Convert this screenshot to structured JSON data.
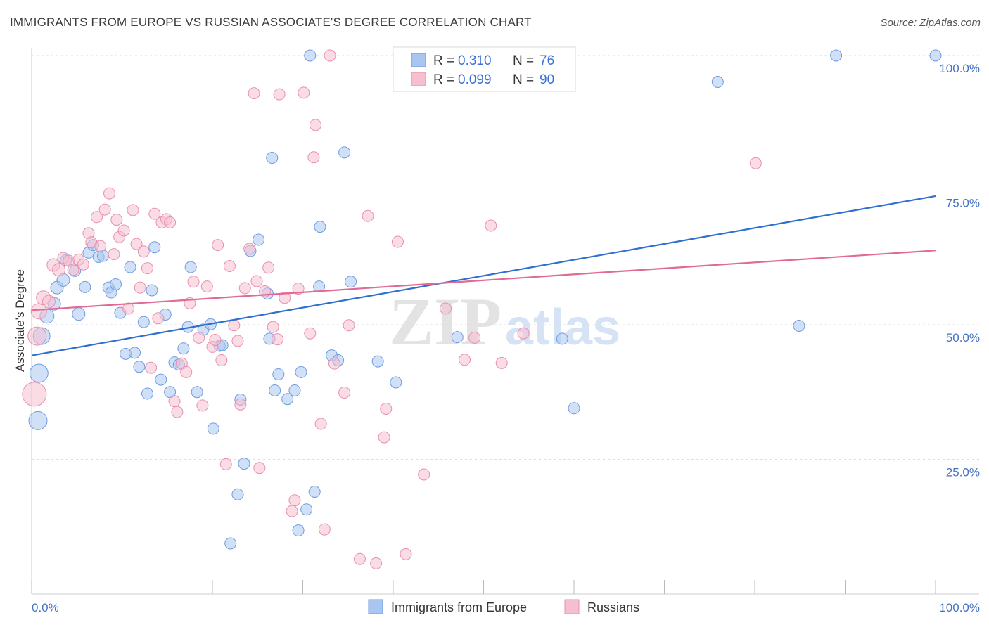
{
  "header": {
    "title": "IMMIGRANTS FROM EUROPE VS RUSSIAN ASSOCIATE'S DEGREE CORRELATION CHART",
    "source": "Source: ZipAtlas.com"
  },
  "watermark": {
    "zip": "ZIP",
    "atlas": "atlas"
  },
  "colors": {
    "blue_fill": "#a9c6f0",
    "blue_stroke": "#6f9be0",
    "blue_line": "#2f6fd0",
    "pink_fill": "#f6bfd0",
    "pink_stroke": "#ea8fae",
    "pink_line": "#e06a95",
    "tick": "#4472c4",
    "grid": "#dddddd"
  },
  "legend_box": {
    "rows": [
      {
        "r_label": "R =",
        "r_value": "0.310",
        "n_label": "N =",
        "n_value": "76"
      },
      {
        "r_label": "R =",
        "r_value": "0.099",
        "n_label": "N =",
        "n_value": "90"
      }
    ]
  },
  "chart_data": {
    "type": "scatter",
    "title": "IMMIGRANTS FROM EUROPE VS RUSSIAN ASSOCIATE'S DEGREE CORRELATION CHART",
    "xlabel": "",
    "ylabel": "Associate's Degree",
    "xlim": [
      0,
      100
    ],
    "ylim": [
      0,
      100
    ],
    "x_tick_labels": [
      "0.0%",
      "100.0%"
    ],
    "y_tick_labels": [
      "100.0%",
      "75.0%",
      "50.0%",
      "25.0%"
    ],
    "y_ticks": [
      100,
      75,
      50,
      25
    ],
    "grid": true,
    "legend_placement": "top-center",
    "series": [
      {
        "name": "Immigrants from Europe",
        "R": 0.31,
        "N": 76,
        "trend": {
          "x": [
            0,
            100
          ],
          "y": [
            44.3,
            73.9
          ]
        },
        "points": [
          [
            0.7,
            32.2,
            13
          ],
          [
            0.8,
            41.0,
            13
          ],
          [
            1.1,
            47.9,
            12
          ],
          [
            1.7,
            51.6,
            10
          ],
          [
            2.5,
            53.9,
            9
          ],
          [
            2.8,
            56.9,
            9
          ],
          [
            3.5,
            58.3,
            9
          ],
          [
            3.8,
            62.0,
            8
          ],
          [
            4.8,
            60.0,
            8
          ],
          [
            5.2,
            52.0,
            9
          ],
          [
            5.9,
            57.0,
            8
          ],
          [
            6.3,
            63.4,
            8
          ],
          [
            6.8,
            64.8,
            8
          ],
          [
            7.4,
            62.6,
            8
          ],
          [
            7.9,
            62.8,
            8
          ],
          [
            8.5,
            56.9,
            8
          ],
          [
            8.8,
            56.0,
            8
          ],
          [
            9.3,
            57.5,
            8
          ],
          [
            9.8,
            52.2,
            8
          ],
          [
            10.4,
            44.6,
            8
          ],
          [
            10.9,
            60.7,
            8
          ],
          [
            11.4,
            44.8,
            8
          ],
          [
            11.9,
            42.2,
            8
          ],
          [
            12.4,
            50.5,
            8
          ],
          [
            12.8,
            37.2,
            8
          ],
          [
            13.3,
            56.4,
            8
          ],
          [
            13.6,
            64.4,
            8
          ],
          [
            14.3,
            39.8,
            8
          ],
          [
            14.8,
            51.9,
            8
          ],
          [
            15.3,
            37.5,
            8
          ],
          [
            15.8,
            43.0,
            8
          ],
          [
            16.3,
            42.6,
            8
          ],
          [
            16.8,
            45.6,
            8
          ],
          [
            17.3,
            49.6,
            8
          ],
          [
            17.6,
            60.7,
            8
          ],
          [
            18.3,
            37.5,
            8
          ],
          [
            19.0,
            49.1,
            8
          ],
          [
            19.8,
            50.1,
            8
          ],
          [
            20.1,
            30.7,
            8
          ],
          [
            20.8,
            46.1,
            8
          ],
          [
            21.1,
            46.2,
            8
          ],
          [
            22.0,
            9.4,
            8
          ],
          [
            22.8,
            18.5,
            8
          ],
          [
            23.1,
            36.1,
            8
          ],
          [
            23.5,
            24.2,
            8
          ],
          [
            24.2,
            63.7,
            8
          ],
          [
            25.1,
            65.8,
            8
          ],
          [
            26.1,
            55.8,
            8
          ],
          [
            26.3,
            47.4,
            8
          ],
          [
            26.6,
            81.0,
            8
          ],
          [
            26.9,
            37.8,
            8
          ],
          [
            27.3,
            40.8,
            8
          ],
          [
            28.3,
            36.2,
            8
          ],
          [
            29.1,
            37.8,
            8
          ],
          [
            29.5,
            11.8,
            8
          ],
          [
            29.8,
            41.2,
            8
          ],
          [
            30.4,
            15.7,
            8
          ],
          [
            30.8,
            100.0,
            8
          ],
          [
            31.3,
            19.0,
            8
          ],
          [
            31.8,
            57.1,
            8
          ],
          [
            31.9,
            68.2,
            8
          ],
          [
            33.2,
            44.3,
            8
          ],
          [
            33.9,
            43.4,
            8
          ],
          [
            34.6,
            82.0,
            8
          ],
          [
            35.3,
            58.0,
            8
          ],
          [
            38.3,
            43.2,
            8
          ],
          [
            40.3,
            39.3,
            8
          ],
          [
            47.1,
            47.7,
            8
          ],
          [
            58.7,
            47.4,
            8
          ],
          [
            60.0,
            34.5,
            8
          ],
          [
            75.9,
            95.1,
            8
          ],
          [
            84.9,
            49.8,
            8
          ],
          [
            89.0,
            100.0,
            8
          ],
          [
            100.0,
            100.0,
            8
          ]
        ]
      },
      {
        "name": "Russians",
        "R": 0.099,
        "N": 90,
        "trend": {
          "x": [
            0,
            100
          ],
          "y": [
            52.7,
            63.8
          ]
        },
        "points": [
          [
            0.3,
            37.1,
            17
          ],
          [
            0.6,
            47.9,
            13
          ],
          [
            0.8,
            52.5,
            11
          ],
          [
            1.3,
            55.0,
            10
          ],
          [
            1.9,
            54.3,
            9
          ],
          [
            2.4,
            61.1,
            9
          ],
          [
            3.0,
            60.2,
            9
          ],
          [
            3.5,
            62.4,
            8
          ],
          [
            4.1,
            61.9,
            8
          ],
          [
            4.6,
            60.2,
            8
          ],
          [
            5.2,
            62.1,
            8
          ],
          [
            5.7,
            61.2,
            8
          ],
          [
            6.3,
            67.0,
            8
          ],
          [
            6.6,
            65.3,
            8
          ],
          [
            7.2,
            70.0,
            8
          ],
          [
            7.6,
            64.6,
            8
          ],
          [
            8.1,
            71.4,
            8
          ],
          [
            8.6,
            74.4,
            8
          ],
          [
            9.1,
            63.1,
            8
          ],
          [
            9.4,
            69.5,
            8
          ],
          [
            9.7,
            66.3,
            8
          ],
          [
            10.2,
            67.5,
            8
          ],
          [
            10.7,
            53.0,
            8
          ],
          [
            11.2,
            71.3,
            8
          ],
          [
            11.6,
            65.0,
            8
          ],
          [
            12.0,
            56.9,
            8
          ],
          [
            12.4,
            63.6,
            8
          ],
          [
            12.8,
            60.5,
            8
          ],
          [
            13.2,
            42.0,
            8
          ],
          [
            13.6,
            70.6,
            8
          ],
          [
            14.0,
            51.2,
            8
          ],
          [
            14.4,
            69.0,
            8
          ],
          [
            14.9,
            69.6,
            8
          ],
          [
            15.3,
            69.0,
            8
          ],
          [
            15.8,
            35.8,
            8
          ],
          [
            16.1,
            33.8,
            8
          ],
          [
            16.6,
            42.8,
            8
          ],
          [
            17.1,
            41.2,
            8
          ],
          [
            17.5,
            54.0,
            8
          ],
          [
            17.9,
            58.0,
            8
          ],
          [
            18.5,
            47.6,
            8
          ],
          [
            18.9,
            35.0,
            8
          ],
          [
            19.4,
            57.1,
            8
          ],
          [
            20.0,
            45.9,
            8
          ],
          [
            20.3,
            47.2,
            8
          ],
          [
            20.6,
            64.8,
            8
          ],
          [
            21.0,
            43.4,
            8
          ],
          [
            21.5,
            24.1,
            8
          ],
          [
            21.9,
            60.9,
            8
          ],
          [
            22.4,
            49.9,
            8
          ],
          [
            22.8,
            47.0,
            8
          ],
          [
            23.1,
            35.2,
            8
          ],
          [
            23.6,
            56.8,
            8
          ],
          [
            24.1,
            64.1,
            8
          ],
          [
            24.6,
            93.0,
            8
          ],
          [
            24.9,
            58.1,
            8
          ],
          [
            25.2,
            23.4,
            8
          ],
          [
            25.8,
            56.2,
            8
          ],
          [
            26.2,
            60.6,
            8
          ],
          [
            26.7,
            49.6,
            8
          ],
          [
            27.2,
            47.3,
            8
          ],
          [
            27.4,
            92.8,
            8
          ],
          [
            28.0,
            55.0,
            8
          ],
          [
            28.8,
            15.4,
            8
          ],
          [
            29.1,
            17.4,
            8
          ],
          [
            29.5,
            56.7,
            8
          ],
          [
            30.1,
            93.1,
            8
          ],
          [
            30.8,
            48.4,
            8
          ],
          [
            31.2,
            81.1,
            8
          ],
          [
            31.4,
            87.1,
            8
          ],
          [
            32.0,
            31.6,
            8
          ],
          [
            32.4,
            12.0,
            8
          ],
          [
            33.0,
            100.0,
            8
          ],
          [
            33.5,
            42.8,
            8
          ],
          [
            34.6,
            37.4,
            8
          ],
          [
            35.1,
            49.9,
            8
          ],
          [
            36.3,
            6.5,
            8
          ],
          [
            37.2,
            70.2,
            8
          ],
          [
            38.1,
            5.7,
            8
          ],
          [
            39.0,
            29.1,
            8
          ],
          [
            39.2,
            34.4,
            8
          ],
          [
            40.5,
            65.4,
            8
          ],
          [
            41.4,
            7.4,
            8
          ],
          [
            43.4,
            22.2,
            8
          ],
          [
            45.8,
            53.0,
            8
          ],
          [
            47.9,
            43.5,
            8
          ],
          [
            49.0,
            47.6,
            8
          ],
          [
            50.8,
            68.4,
            8
          ],
          [
            52.0,
            42.9,
            8
          ],
          [
            54.4,
            48.4,
            8
          ],
          [
            80.1,
            80.0,
            8
          ]
        ]
      }
    ]
  },
  "bottom_legend": {
    "items": [
      {
        "label": "Immigrants from Europe"
      },
      {
        "label": "Russians"
      }
    ]
  }
}
